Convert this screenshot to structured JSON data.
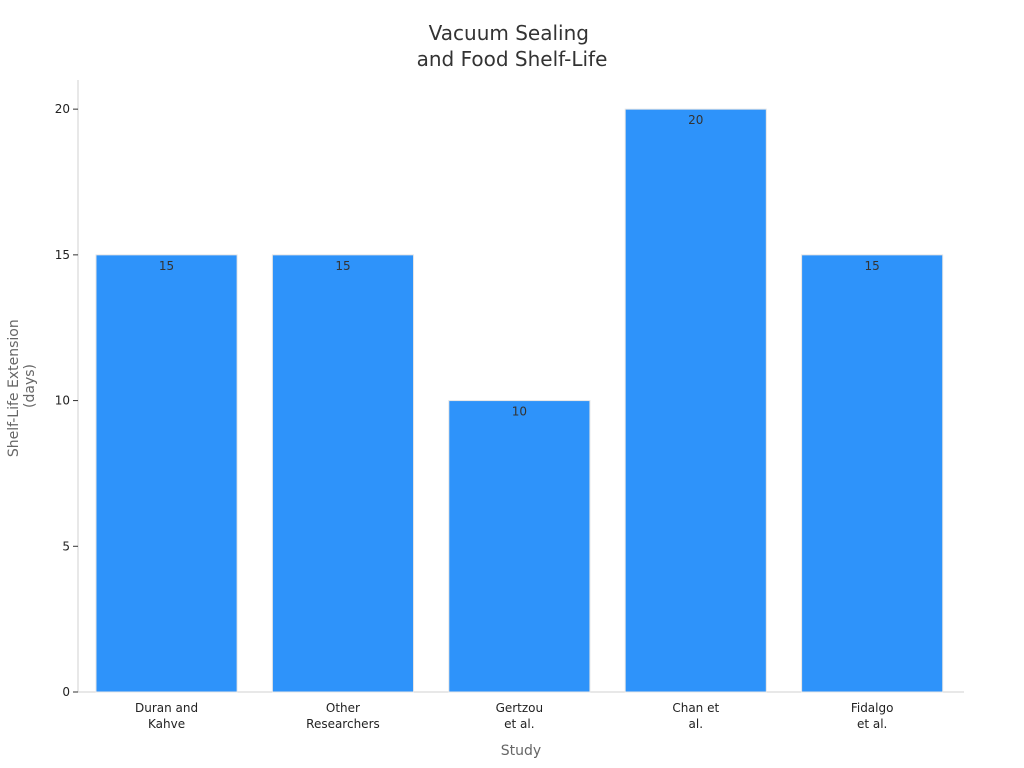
{
  "colors": {
    "bar": "#2e93fa",
    "background": "#ffffff"
  },
  "chart_data": {
    "type": "bar",
    "title": [
      "Vacuum Sealing",
      "and Food Shelf-Life"
    ],
    "xlabel": "Study",
    "ylabel": [
      "Shelf-Life Extension",
      "(days)"
    ],
    "categories": [
      [
        "Duran and",
        "Kahve"
      ],
      [
        "Other",
        "Researchers"
      ],
      [
        "Gertzou",
        "et al."
      ],
      [
        "Chan et",
        "al."
      ],
      [
        "Fidalgo",
        "et al."
      ]
    ],
    "values": [
      15,
      15,
      10,
      20,
      15
    ],
    "data_labels": [
      "15",
      "15",
      "10",
      "20",
      "15"
    ],
    "ylim": [
      0,
      21
    ],
    "yticks": [
      0,
      5,
      10,
      15,
      20
    ],
    "ytick_labels": [
      "0",
      "5",
      "10",
      "15",
      "20"
    ],
    "grid": false,
    "legend": "none"
  }
}
